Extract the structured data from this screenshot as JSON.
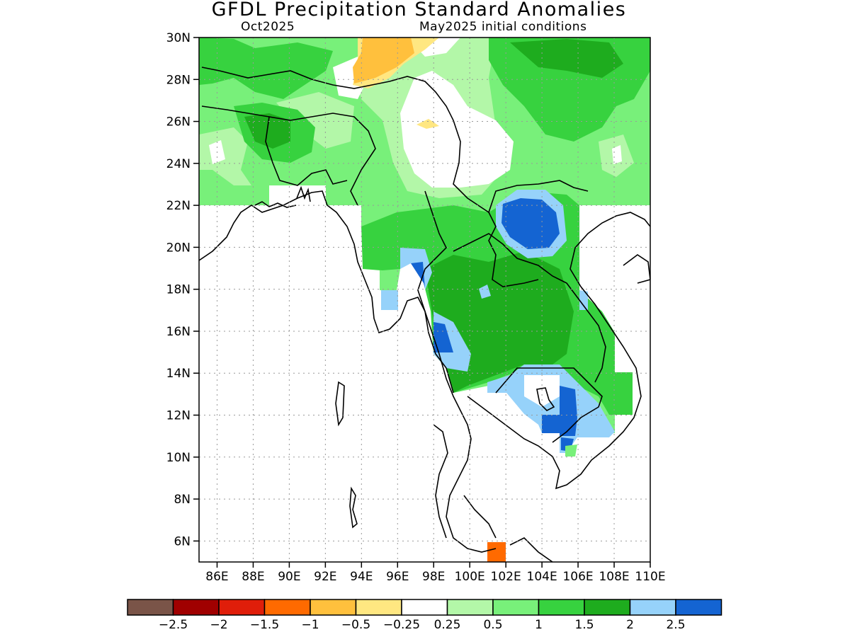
{
  "header": {
    "title": "GFDL Precipitation Standard Anomalies",
    "valid_month": "Oct2025",
    "init_conditions": "May2025 initial conditions"
  },
  "map": {
    "lon_range": [
      85,
      110
    ],
    "lat_range": [
      5,
      30
    ],
    "lat_ticks": [
      "6N",
      "8N",
      "10N",
      "12N",
      "14N",
      "16N",
      "18N",
      "20N",
      "22N",
      "24N",
      "26N",
      "28N",
      "30N"
    ],
    "lon_ticks": [
      "86E",
      "88E",
      "90E",
      "92E",
      "94E",
      "96E",
      "98E",
      "100E",
      "102E",
      "104E",
      "106E",
      "108E",
      "110E"
    ],
    "grid": "dotted"
  },
  "colorbar": {
    "labels": [
      "-2.5",
      "-2",
      "-1.5",
      "-1",
      "-0.5",
      "-0.25",
      "0.25",
      "0.5",
      "1",
      "1.5",
      "2",
      "2.5"
    ],
    "colors": [
      "#7a5448",
      "#a00000",
      "#e01e0a",
      "#ff6a00",
      "#ffc03d",
      "#ffe781",
      "#ffffff",
      "#b3f7a8",
      "#78f07a",
      "#37d23f",
      "#1eac1e",
      "#96d2fa",
      "#1464d2"
    ]
  }
}
